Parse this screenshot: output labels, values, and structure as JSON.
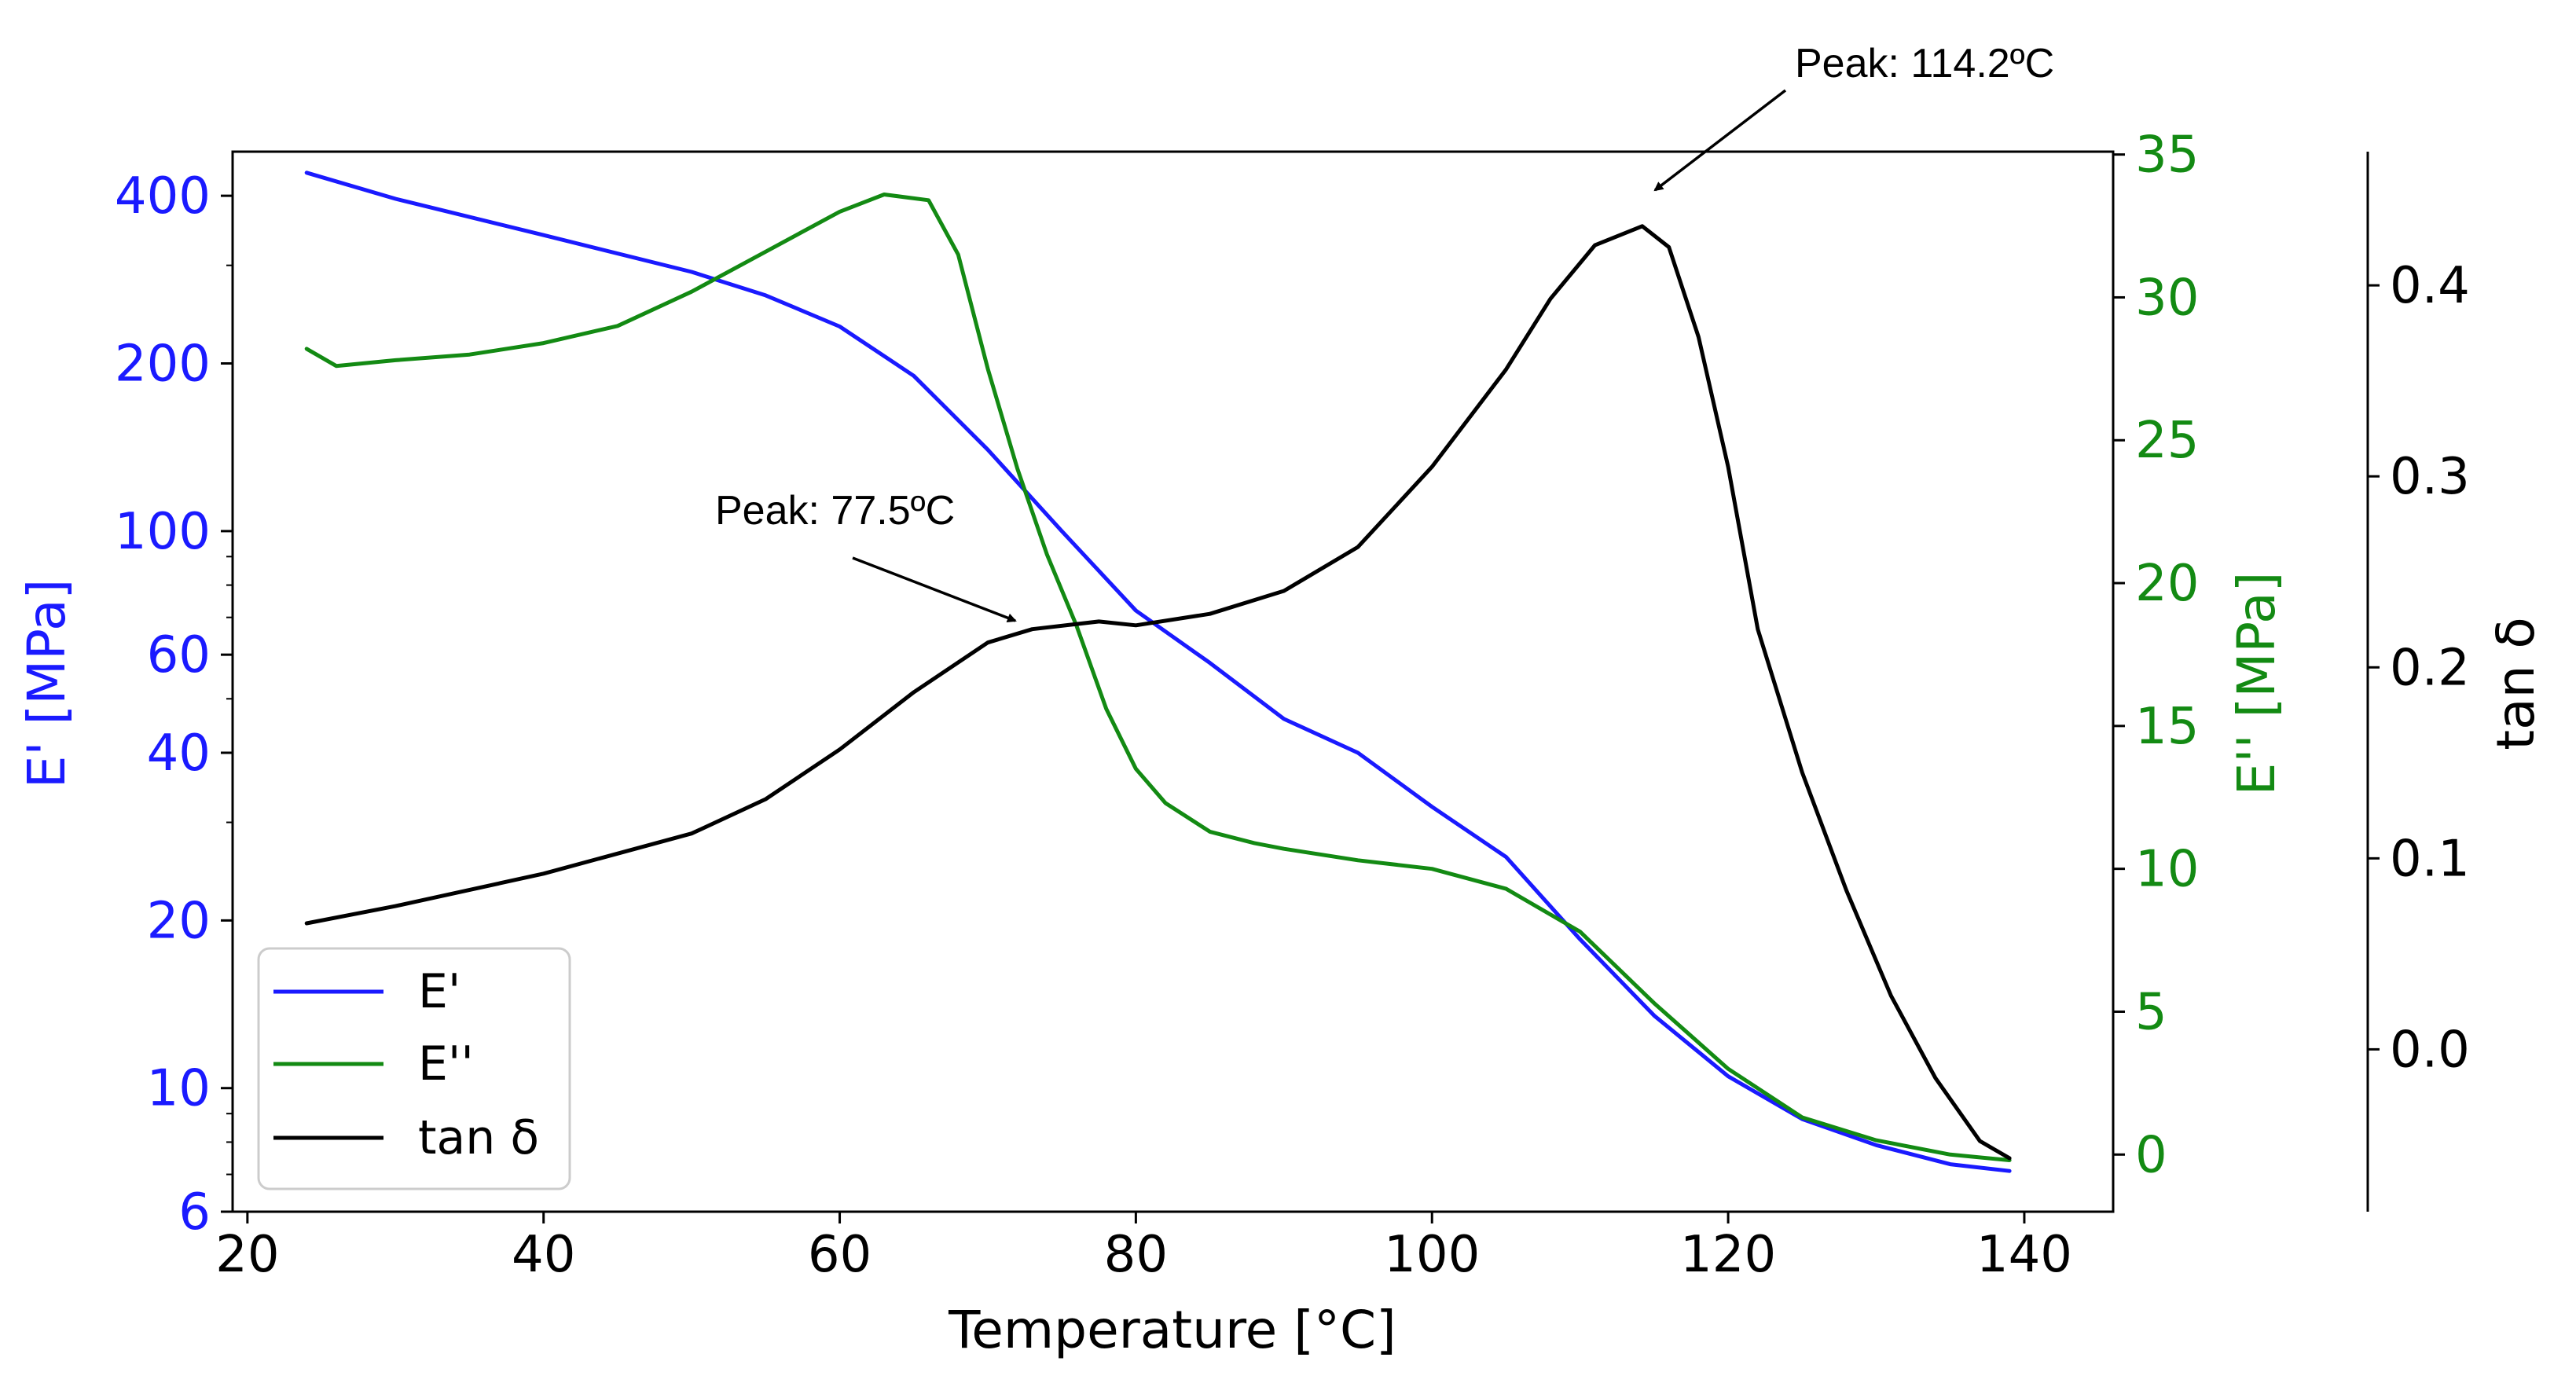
{
  "chart_data": {
    "type": "line",
    "title": "",
    "xlabel": "Temperature [°C]",
    "xlim": [
      19,
      146
    ],
    "x_ticks": [
      20,
      40,
      60,
      80,
      100,
      120,
      140
    ],
    "grid": false,
    "legend_position": "bottom-left",
    "axes": {
      "left": {
        "label": "E' [MPa]",
        "scale": "log",
        "ylim": [
          6,
          480
        ],
        "ticks": [
          {
            "value": 6,
            "label": "6"
          },
          {
            "value": 10,
            "label": "10"
          },
          {
            "value": 20,
            "label": "20"
          },
          {
            "value": 40,
            "label": "40"
          },
          {
            "value": 60,
            "label": "60"
          },
          {
            "value": 100,
            "label": "100"
          },
          {
            "value": 200,
            "label": "200"
          },
          {
            "value": 400,
            "label": "400"
          }
        ],
        "minor_ticks": [
          7,
          8,
          9,
          30,
          50,
          70,
          80,
          90,
          300
        ],
        "color": "#1a1aff"
      },
      "right1": {
        "label": "E'' [MPa]",
        "scale": "linear",
        "ylim": [
          -2,
          35.1
        ],
        "ticks": [
          0,
          5,
          10,
          15,
          20,
          25,
          30,
          35
        ],
        "color": "#138a13"
      },
      "right2": {
        "label": "tan δ",
        "scale": "linear",
        "ylim": [
          -0.085,
          0.47
        ],
        "ticks": [
          0.0,
          0.1,
          0.2,
          0.3,
          0.4
        ],
        "tick_labels": [
          "0.0",
          "0.1",
          "0.2",
          "0.3",
          "0.4"
        ],
        "color": "#000000"
      }
    },
    "series": [
      {
        "name": "E'",
        "axis": "left",
        "color": "#1a1aff",
        "x": [
          24,
          30,
          40,
          50,
          55,
          60,
          65,
          70,
          75,
          80,
          85,
          90,
          95,
          100,
          105,
          110,
          115,
          120,
          125,
          130,
          135,
          139
        ],
        "values": [
          440,
          395,
          340,
          292,
          265,
          233,
          190,
          140,
          100,
          72,
          58,
          46,
          40,
          32,
          26,
          18.5,
          13.5,
          10.5,
          8.8,
          7.9,
          7.3,
          7.1
        ]
      },
      {
        "name": "E''",
        "axis": "right1",
        "color": "#138a13",
        "x": [
          24,
          26,
          30,
          35,
          40,
          45,
          50,
          55,
          60,
          63,
          66,
          68,
          70,
          72,
          74,
          76,
          78,
          80,
          82,
          85,
          88,
          90,
          95,
          100,
          105,
          110,
          115,
          120,
          125,
          130,
          135,
          139
        ],
        "values": [
          28.2,
          27.6,
          27.8,
          28.0,
          28.4,
          29.0,
          30.2,
          31.6,
          33.0,
          33.6,
          33.4,
          31.5,
          27.5,
          24.0,
          21.0,
          18.5,
          15.6,
          13.5,
          12.3,
          11.3,
          10.9,
          10.7,
          10.3,
          10.0,
          9.3,
          7.8,
          5.3,
          3.0,
          1.3,
          0.5,
          0.0,
          -0.2
        ]
      },
      {
        "name": "tan δ",
        "axis": "right2",
        "color": "#000000",
        "x": [
          24,
          30,
          40,
          50,
          55,
          60,
          65,
          70,
          73,
          77.5,
          80,
          85,
          90,
          95,
          100,
          105,
          108,
          111,
          114.2,
          116,
          118,
          120,
          122,
          125,
          128,
          131,
          134,
          137,
          139
        ],
        "values": [
          0.066,
          0.075,
          0.092,
          0.113,
          0.131,
          0.157,
          0.187,
          0.213,
          0.22,
          0.224,
          0.222,
          0.228,
          0.24,
          0.263,
          0.305,
          0.356,
          0.393,
          0.421,
          0.431,
          0.42,
          0.373,
          0.305,
          0.22,
          0.145,
          0.083,
          0.028,
          -0.015,
          -0.048,
          -0.057
        ]
      }
    ],
    "annotations": [
      {
        "text": "Peak: 77.5ºC",
        "x": 77.5,
        "series": "tan δ"
      },
      {
        "text": "Peak: 114.2ºC",
        "x": 114.2,
        "series": "tan δ"
      }
    ]
  }
}
